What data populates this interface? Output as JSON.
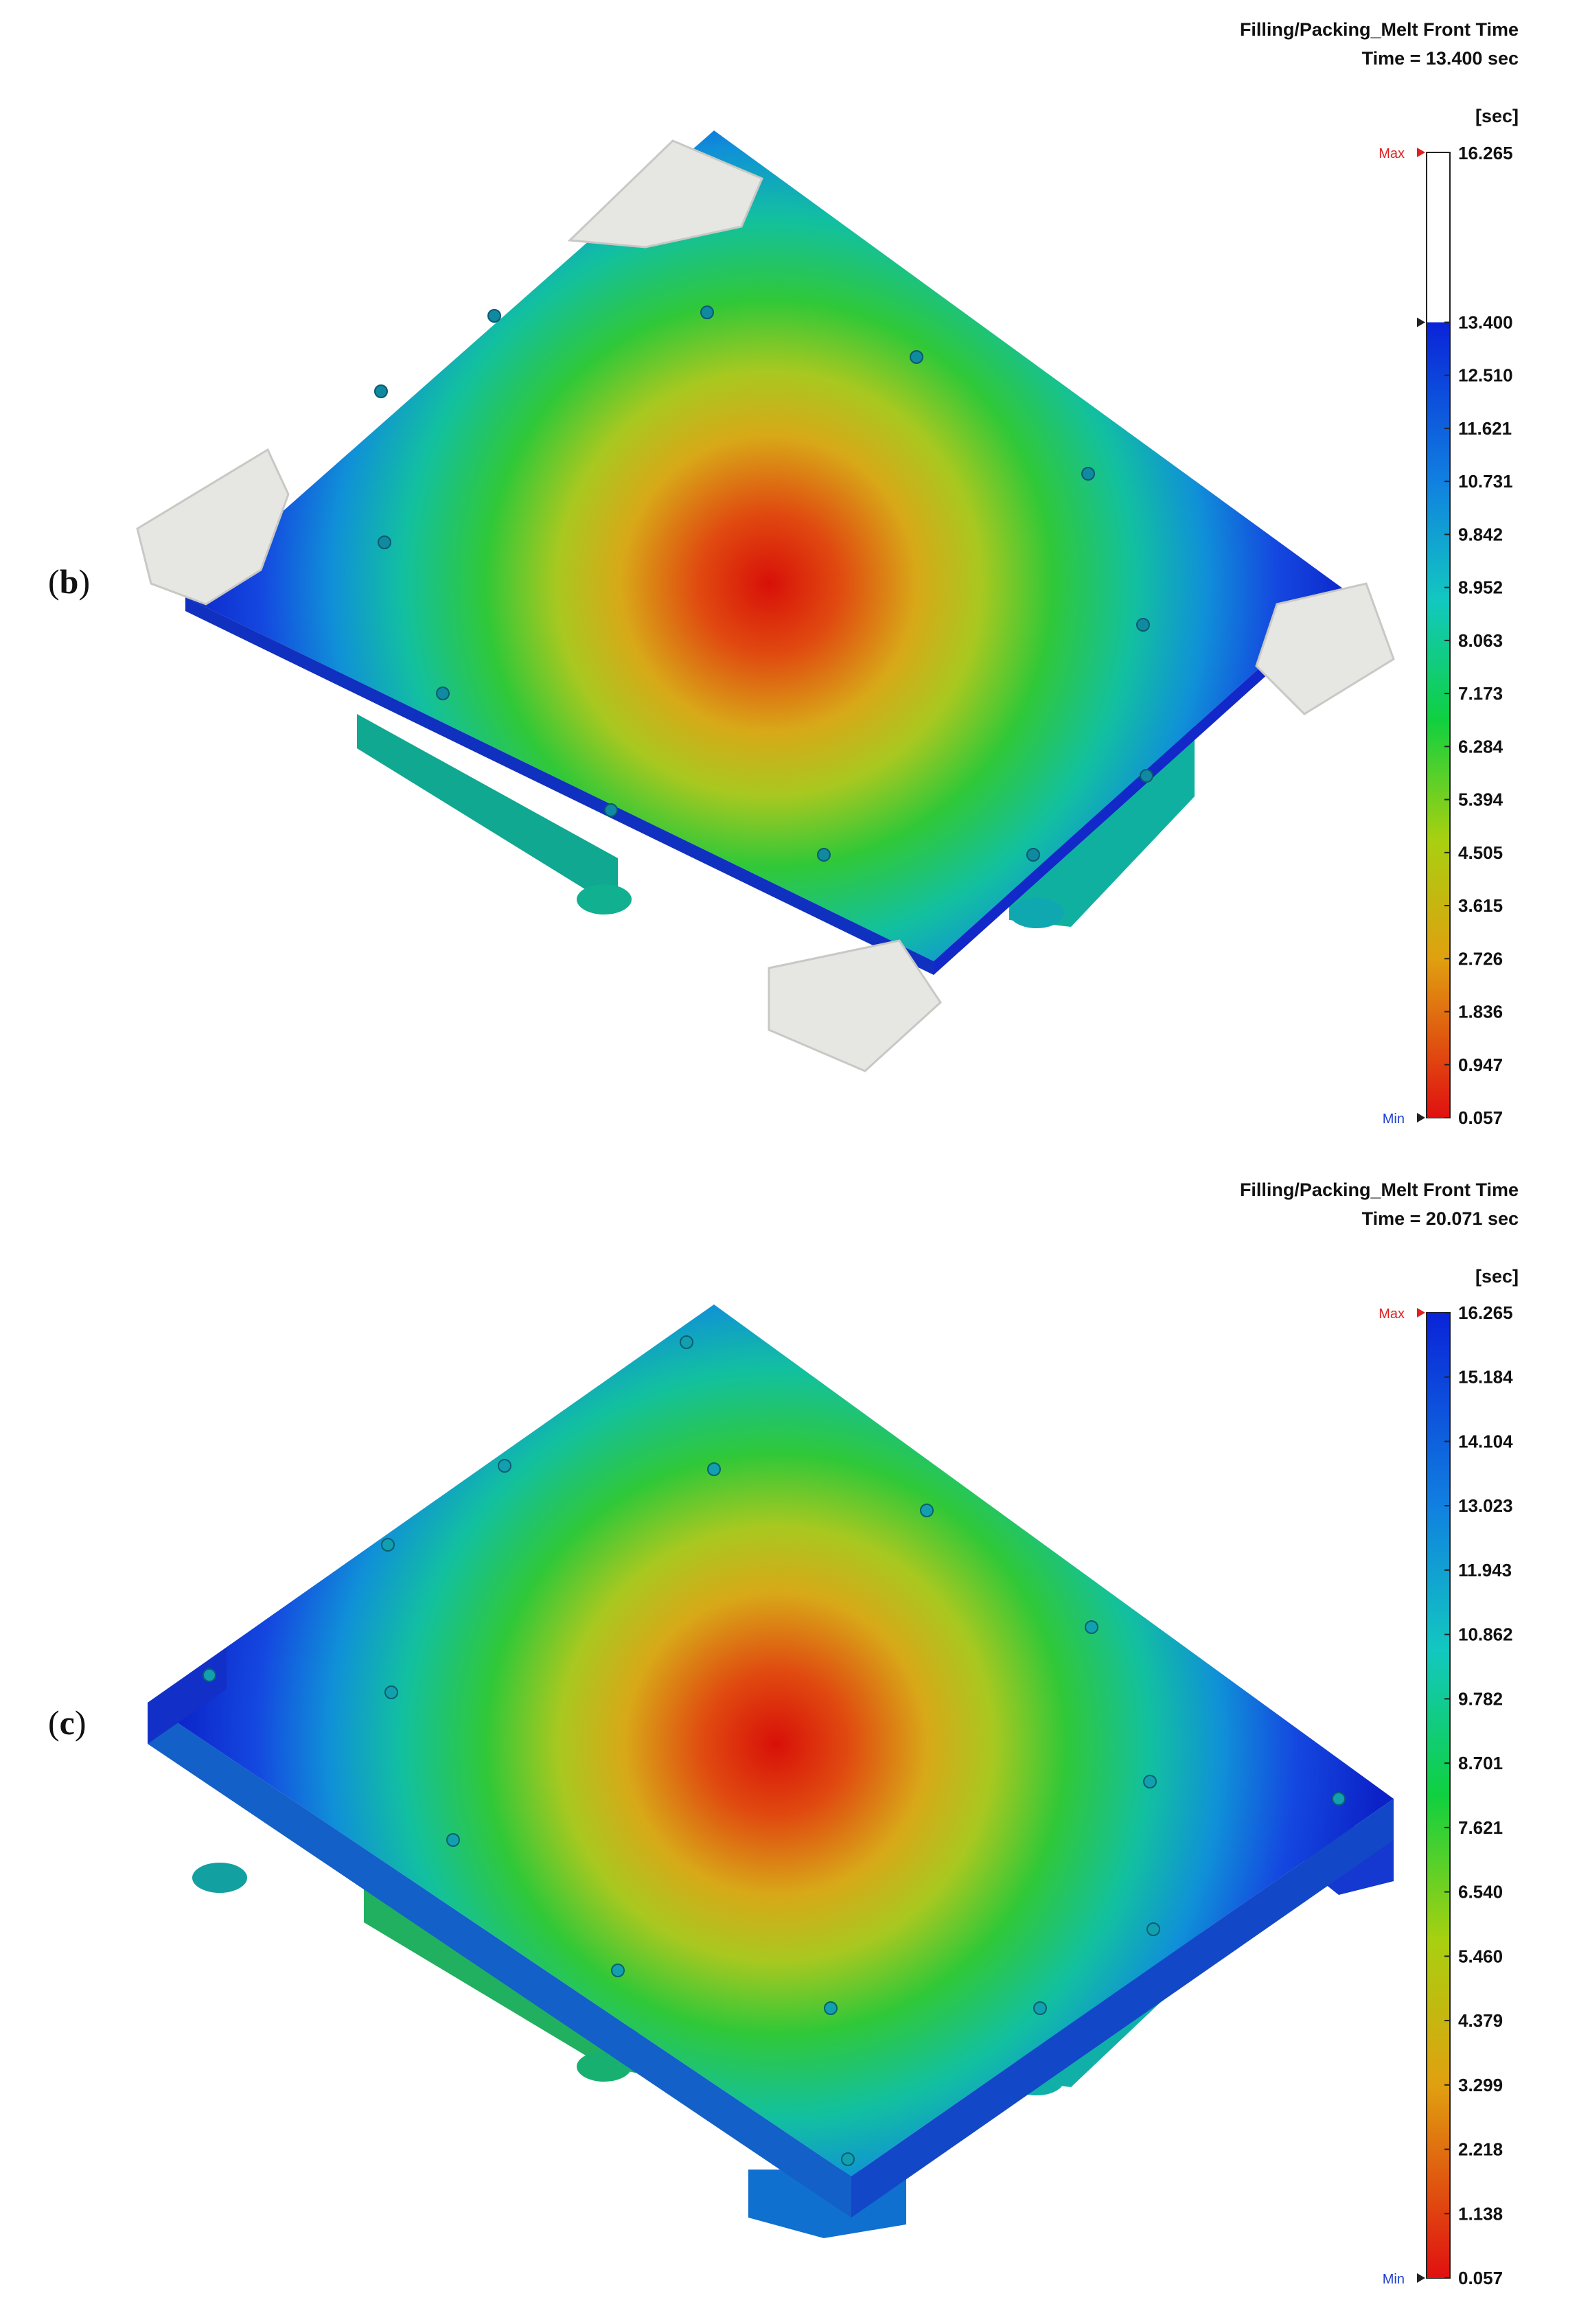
{
  "panels": [
    {
      "label": "b",
      "title": "Filling/Packing_Melt Front Time",
      "time": "Time = 13.400 sec",
      "unit": "[sec]",
      "max_label": "Max",
      "min_label": "Min",
      "max_value": "16.265",
      "min_value": "0.057",
      "fill_fraction": 0.824,
      "ticks": [
        "13.400",
        "12.510",
        "11.621",
        "10.731",
        "9.842",
        "8.952",
        "8.063",
        "7.173",
        "6.284",
        "5.394",
        "4.505",
        "3.615",
        "2.726",
        "1.836",
        "0.947",
        "0.057"
      ]
    },
    {
      "label": "c",
      "title": "Filling/Packing_Melt Front Time",
      "time": "Time = 20.071 sec",
      "unit": "[sec]",
      "max_label": "Max",
      "min_label": "Min",
      "max_value": "16.265",
      "min_value": "0.057",
      "fill_fraction": 1.0,
      "ticks": [
        "16.265",
        "15.184",
        "14.104",
        "13.023",
        "11.943",
        "10.862",
        "9.782",
        "8.701",
        "7.621",
        "6.540",
        "5.460",
        "4.379",
        "3.299",
        "2.218",
        "1.138",
        "0.057"
      ]
    }
  ],
  "colors": {
    "scale_high": "#0a23d8",
    "scale_mid": "#10d040",
    "scale_low": "#e01010",
    "unfilled": "#e6e6e2",
    "max_marker": "#e02020",
    "min_marker": "#2040d0"
  }
}
